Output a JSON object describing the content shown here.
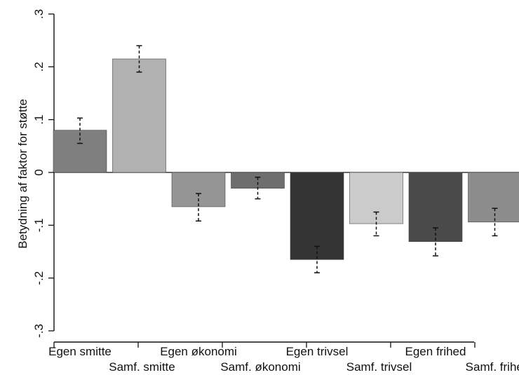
{
  "chart_data": {
    "type": "bar",
    "title": "",
    "xlabel": "",
    "ylabel": "Betydning af faktor for støtte",
    "ylim": [
      -0.3,
      0.3
    ],
    "yticks": [
      ".3",
      ".2",
      ".1",
      "0",
      "-.1",
      "-.2",
      "-.3"
    ],
    "ytick_values": [
      0.3,
      0.2,
      0.1,
      0,
      -0.1,
      -0.2,
      -0.3
    ],
    "grid": false,
    "legend": "none",
    "error_bars": true,
    "categories": [
      "Egen smitte",
      "Samf. smitte",
      "Egen økonomi",
      "Samf. økonomi",
      "Egen trivsel",
      "Samf. trivsel",
      "Egen frihed",
      "Samf. frihed"
    ],
    "values": [
      0.08,
      0.215,
      -0.065,
      -0.03,
      -0.165,
      -0.097,
      -0.131,
      -0.094
    ],
    "ci_lower": [
      0.055,
      0.19,
      -0.092,
      -0.05,
      -0.19,
      -0.12,
      -0.158,
      -0.12
    ],
    "ci_upper": [
      0.103,
      0.24,
      -0.04,
      -0.009,
      -0.14,
      -0.075,
      -0.105,
      -0.068
    ],
    "colors": [
      "#7f7f7f",
      "#b1b1b1",
      "#959595",
      "#6e6e6e",
      "#353535",
      "#cbcbcb",
      "#4b4b4b",
      "#8d8d8d"
    ]
  }
}
